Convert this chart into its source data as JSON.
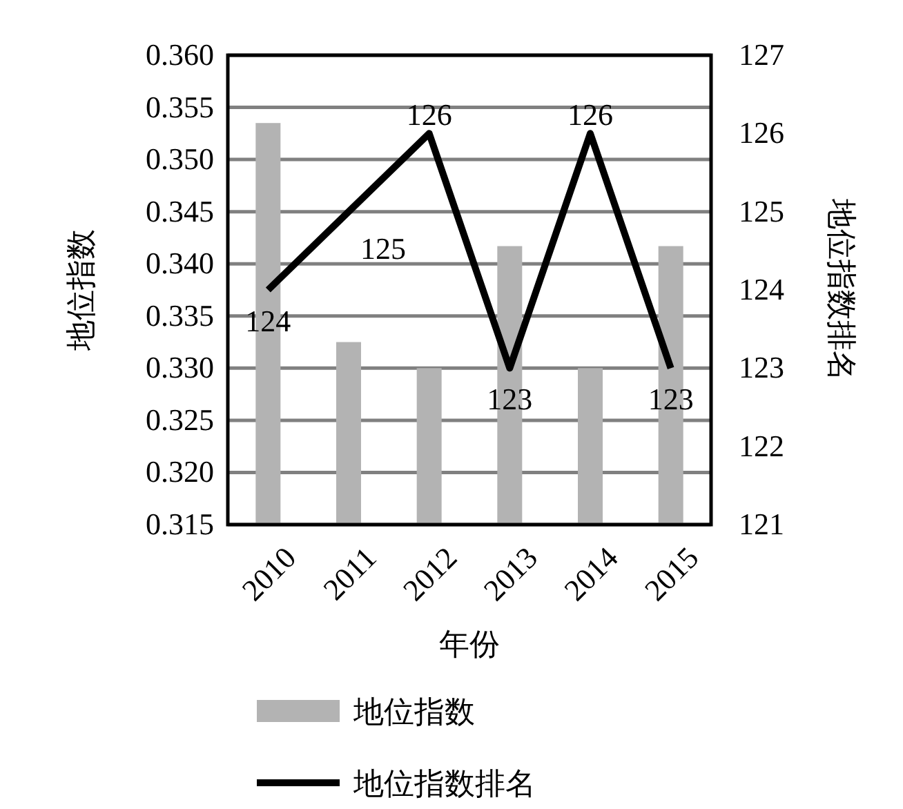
{
  "chart_data": {
    "type": "bar",
    "xlabel": "年份",
    "ylabel": "地位指数",
    "y2label": "地位指数排名",
    "categories": [
      "2010",
      "2011",
      "2012",
      "2013",
      "2014",
      "2015"
    ],
    "series": [
      {
        "name": "地位指数",
        "color": "#b3b3b3",
        "values": [
          0.3535,
          0.3325,
          0.33,
          0.3417,
          0.33,
          0.3417
        ]
      },
      {
        "name": "地位指数排名",
        "type": "line",
        "axis": "y2",
        "color": "#000000",
        "values": [
          124,
          125,
          126,
          123,
          126,
          123
        ],
        "value_labels": [
          "124",
          "125",
          "126",
          "123",
          "126",
          "123"
        ]
      }
    ],
    "ylim": [
      0.315,
      0.36
    ],
    "yticks": [
      0.315,
      {
        "value": 0.32,
        "label": "0.320"
      },
      0.325,
      {
        "value": 0.33,
        "label": "0.330"
      },
      0.335,
      {
        "value": 0.34,
        "label": "0.340"
      },
      0.345,
      {
        "value": 0.35,
        "label": "0.350"
      },
      0.355,
      {
        "value": 0.36,
        "label": "0.360"
      }
    ],
    "y2lim": [
      121,
      127
    ],
    "y2ticks": [
      121,
      122,
      123,
      124,
      125,
      126,
      127
    ],
    "grid": "y",
    "legend": "bottom"
  }
}
